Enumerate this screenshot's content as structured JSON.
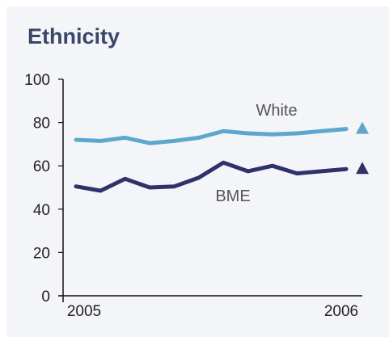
{
  "title": "Ethnicity",
  "colors": {
    "background": "#f4f5f9",
    "title": "#3b4566",
    "axis": "#111111"
  },
  "chart_data": {
    "type": "line",
    "title": "Ethnicity",
    "x": [
      0,
      1,
      2,
      3,
      4,
      5,
      6,
      7,
      8,
      9,
      10,
      11
    ],
    "x_tick_labels": [
      "2005",
      "2006"
    ],
    "ylim": [
      0,
      100
    ],
    "y_ticks": [
      "0",
      "20",
      "40",
      "60",
      "80",
      "100"
    ],
    "y_tick_values": [
      0,
      20,
      40,
      60,
      80,
      100
    ],
    "grid": false,
    "series": [
      {
        "name": "White",
        "color": "#5fa6cd",
        "marker": "up-triangle",
        "values": [
          72,
          71.5,
          73,
          70.5,
          71.5,
          73,
          76,
          75,
          74.5,
          75,
          76,
          77
        ]
      },
      {
        "name": "BME",
        "color": "#2f3268",
        "marker": "up-triangle",
        "values": [
          50.5,
          48.5,
          54,
          50,
          50.5,
          54.5,
          61.5,
          57.5,
          60,
          56.5,
          57.5,
          58.5
        ]
      }
    ]
  }
}
